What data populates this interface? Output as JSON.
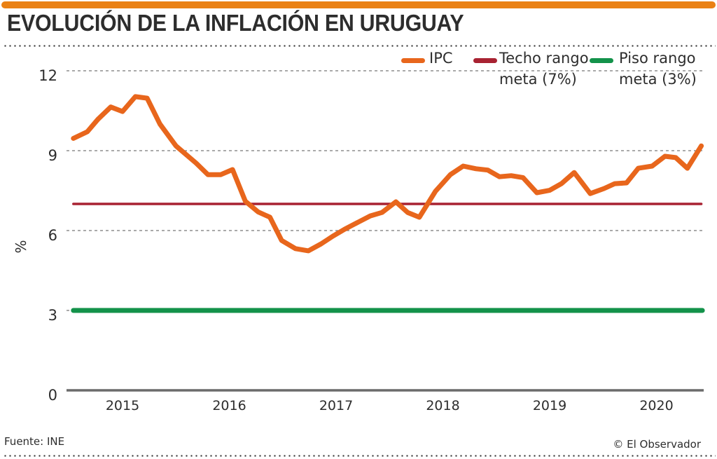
{
  "title": "EVOLUCIÓN DE LA INFLACIÓN EN URUGUAY",
  "source": "Fuente: INE",
  "credit": "© El Observador",
  "colors": {
    "accent_bar": "#ea8114",
    "ipc": "#e8661c",
    "ceiling": "#a82232",
    "floor": "#13924a",
    "grid": "#777777",
    "axis": "#6b6b6b",
    "text": "#2d2d2d"
  },
  "legend": [
    {
      "key": "ipc",
      "label": "IPC",
      "color": "#e8661c"
    },
    {
      "key": "ceiling",
      "label": "Techo rango\nmeta (7%)",
      "color": "#a82232"
    },
    {
      "key": "floor",
      "label": "Piso rango\nmeta (3%)",
      "color": "#13924a"
    }
  ],
  "chart_data": {
    "type": "line",
    "title": "EVOLUCIÓN DE LA INFLACIÓN EN URUGUAY",
    "xlabel": "",
    "ylabel": "%",
    "ylim": [
      0,
      12
    ],
    "yticks": [
      0,
      3,
      6,
      9,
      12
    ],
    "xlim": [
      2014.54,
      2020.43
    ],
    "xticks": [
      2015,
      2016,
      2017,
      2018,
      2019,
      2020
    ],
    "xtick_labels": [
      "2015",
      "2016",
      "2017",
      "2018",
      "2019",
      "2020"
    ],
    "grid": true,
    "legend_position": "top-right",
    "series": [
      {
        "name": "IPC",
        "x": [
          2014.54,
          2014.67,
          2014.77,
          2014.89,
          2015.0,
          2015.12,
          2015.23,
          2015.35,
          2015.5,
          2015.69,
          2015.8,
          2015.92,
          2016.03,
          2016.15,
          2016.27,
          2016.38,
          2016.49,
          2016.62,
          2016.74,
          2016.86,
          2016.97,
          2017.08,
          2017.21,
          2017.32,
          2017.43,
          2017.56,
          2017.67,
          2017.78,
          2017.93,
          2018.07,
          2018.19,
          2018.31,
          2018.42,
          2018.53,
          2018.64,
          2018.75,
          2018.88,
          2019.0,
          2019.11,
          2019.23,
          2019.38,
          2019.51,
          2019.61,
          2019.72,
          2019.83,
          2019.96,
          2020.08,
          2020.18,
          2020.29,
          2020.42
        ],
        "values": [
          9.46,
          9.71,
          10.18,
          10.64,
          10.47,
          11.03,
          10.97,
          10.0,
          9.18,
          8.53,
          8.1,
          8.1,
          8.29,
          7.1,
          6.7,
          6.5,
          5.63,
          5.32,
          5.24,
          5.5,
          5.79,
          6.05,
          6.32,
          6.55,
          6.68,
          7.08,
          6.68,
          6.5,
          7.47,
          8.1,
          8.42,
          8.32,
          8.27,
          8.02,
          8.06,
          7.99,
          7.42,
          7.51,
          7.76,
          8.18,
          7.39,
          7.58,
          7.76,
          7.79,
          8.34,
          8.42,
          8.79,
          8.74,
          8.34,
          9.18
        ]
      },
      {
        "name": "Techo rango meta (7%)",
        "x": [
          2014.54,
          2020.42
        ],
        "values": [
          7,
          7
        ]
      },
      {
        "name": "Piso rango meta (3%)",
        "x": [
          2014.54,
          2020.43
        ],
        "values": [
          3,
          3
        ]
      }
    ]
  }
}
